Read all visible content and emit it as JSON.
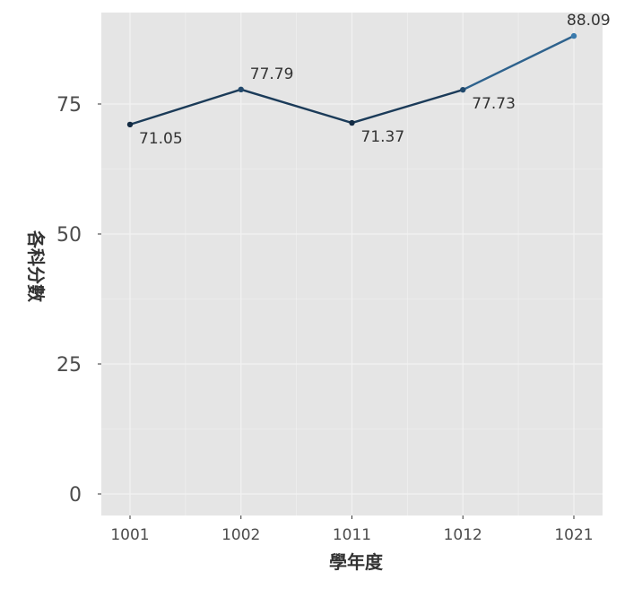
{
  "chart_data": {
    "type": "line",
    "title": "",
    "xlabel": "學年度",
    "ylabel": "各科分數",
    "categories": [
      "1001",
      "1002",
      "1011",
      "1012",
      "1021"
    ],
    "series": [
      {
        "values": [
          71.05,
          77.79,
          71.37,
          77.73,
          88.09
        ]
      }
    ],
    "data_labels": [
      "71.05",
      "77.79",
      "71.37",
      "77.73",
      "88.09"
    ],
    "ylim": [
      -4,
      90
    ],
    "yticks": [
      0,
      25,
      50,
      75
    ],
    "ytick_labels": [
      "0",
      "25",
      "50",
      "75"
    ],
    "grid": true,
    "legend": "none",
    "colors": {
      "panel_background": "#e5e5e5",
      "gridline": "#f2f2f2",
      "line_start": "#132b43",
      "line_end": "#56b1f7"
    }
  }
}
